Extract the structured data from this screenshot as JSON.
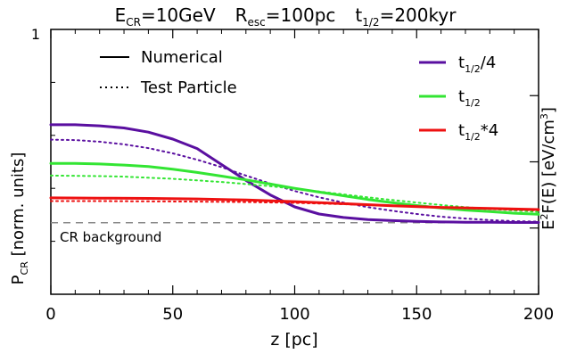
{
  "chart_data": {
    "type": "line",
    "title": {
      "e_main": "E",
      "e_sub": "CR",
      "e_val": "=10GeV",
      "r_main": "R",
      "r_sub": "esc",
      "r_val": "=100pc",
      "t_main": "t",
      "t_sub": "1/2",
      "t_val": "=200kyr"
    },
    "xlabel": "z [pc]",
    "ylabel_left": {
      "main": "P",
      "sub": "CR",
      "rest": " [norm. units]"
    },
    "ylabel_right": {
      "e": "E",
      "sup": "2",
      "mid": "F(E) [eV/cm",
      "sup2": "3",
      "end": "]"
    },
    "xlim": [
      0,
      200
    ],
    "ylim": [
      0,
      1
    ],
    "x_ticks": [
      0,
      50,
      100,
      150,
      200
    ],
    "x_tick_labels": [
      "0",
      "50",
      "100",
      "150",
      "200"
    ],
    "y_tick_label_top": "1",
    "background_level": 0.27,
    "background_label": "CR background",
    "style_legend": [
      {
        "label": "Numerical",
        "dash": "solid"
      },
      {
        "label": "Test Particle",
        "dash": "dotted"
      }
    ],
    "series_legend": [
      {
        "main": "t",
        "sub": "1/2",
        "suffix": "/4",
        "color": "#5a0fa0"
      },
      {
        "main": "t",
        "sub": "1/2",
        "suffix": "",
        "color": "#33e533"
      },
      {
        "main": "t",
        "sub": "1/2",
        "suffix": "*4",
        "color": "#ee1111"
      }
    ],
    "series": [
      {
        "color": "#5a0fa0",
        "dash": "solid",
        "x": [
          0,
          10,
          20,
          30,
          40,
          50,
          60,
          70,
          80,
          90,
          100,
          110,
          120,
          130,
          140,
          150,
          160,
          170,
          180,
          190,
          200
        ],
        "y": [
          0.64,
          0.64,
          0.636,
          0.628,
          0.612,
          0.586,
          0.55,
          0.49,
          0.43,
          0.375,
          0.33,
          0.303,
          0.29,
          0.282,
          0.278,
          0.275,
          0.273,
          0.272,
          0.272,
          0.271,
          0.271
        ]
      },
      {
        "color": "#5a0fa0",
        "dash": "dotted",
        "x": [
          0,
          10,
          20,
          30,
          40,
          50,
          60,
          70,
          80,
          90,
          100,
          110,
          120,
          130,
          140,
          150,
          160,
          170,
          180,
          190,
          200
        ],
        "y": [
          0.584,
          0.582,
          0.576,
          0.566,
          0.552,
          0.532,
          0.508,
          0.48,
          0.448,
          0.418,
          0.39,
          0.366,
          0.346,
          0.329,
          0.315,
          0.303,
          0.293,
          0.286,
          0.28,
          0.276,
          0.274
        ]
      },
      {
        "color": "#33e533",
        "dash": "solid",
        "x": [
          0,
          10,
          20,
          30,
          40,
          50,
          60,
          70,
          80,
          90,
          100,
          110,
          120,
          130,
          140,
          150,
          160,
          170,
          180,
          190,
          200
        ],
        "y": [
          0.494,
          0.494,
          0.492,
          0.488,
          0.482,
          0.472,
          0.46,
          0.446,
          0.432,
          0.416,
          0.4,
          0.386,
          0.372,
          0.358,
          0.346,
          0.335,
          0.326,
          0.318,
          0.312,
          0.306,
          0.302
        ]
      },
      {
        "color": "#33e533",
        "dash": "dotted",
        "x": [
          0,
          10,
          20,
          30,
          40,
          50,
          60,
          70,
          80,
          90,
          100,
          110,
          120,
          130,
          140,
          150,
          160,
          170,
          180,
          190,
          200
        ],
        "y": [
          0.448,
          0.447,
          0.446,
          0.444,
          0.44,
          0.436,
          0.43,
          0.424,
          0.416,
          0.408,
          0.398,
          0.388,
          0.377,
          0.366,
          0.356,
          0.346,
          0.337,
          0.329,
          0.322,
          0.316,
          0.311
        ]
      },
      {
        "color": "#ee1111",
        "dash": "solid",
        "x": [
          0,
          20,
          40,
          60,
          80,
          100,
          120,
          140,
          160,
          180,
          200
        ],
        "y": [
          0.364,
          0.363,
          0.362,
          0.36,
          0.356,
          0.35,
          0.342,
          0.334,
          0.328,
          0.324,
          0.32
        ]
      },
      {
        "color": "#ee1111",
        "dash": "dotted",
        "x": [
          0,
          20,
          40,
          60,
          80,
          100,
          120,
          140,
          160,
          180,
          200
        ],
        "y": [
          0.352,
          0.352,
          0.351,
          0.35,
          0.348,
          0.345,
          0.34,
          0.334,
          0.328,
          0.322,
          0.317
        ]
      }
    ]
  }
}
